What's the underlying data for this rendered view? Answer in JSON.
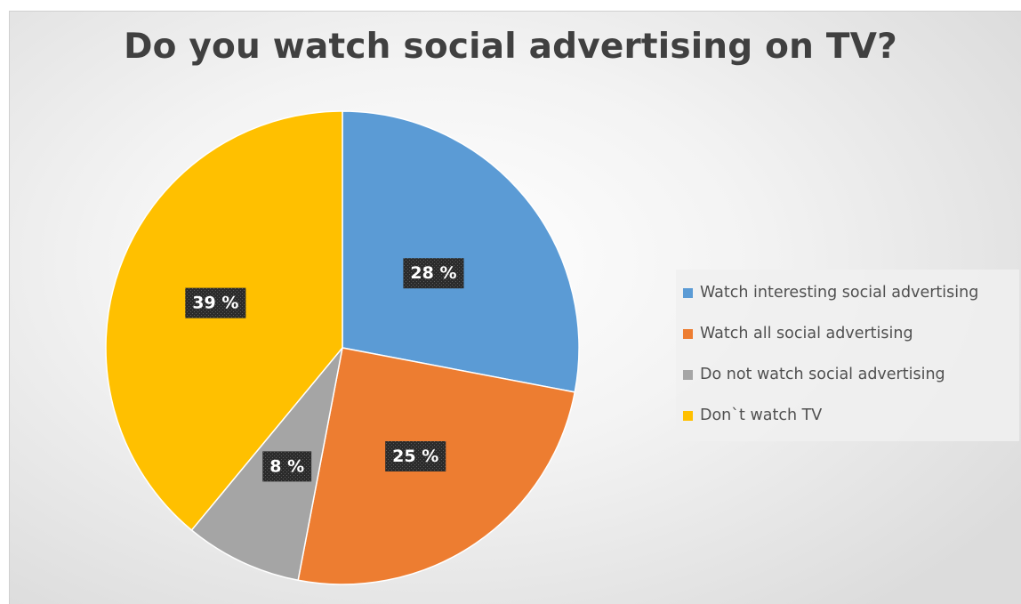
{
  "chart_data": {
    "type": "pie",
    "title": "Do you watch social advertising on TV?",
    "slices": [
      {
        "label": "Watch interesting social advertising",
        "value": 28,
        "data_label": "28 %",
        "color": "#5b9bd5"
      },
      {
        "label": "Watch all social advertising",
        "value": 25,
        "data_label": "25 %",
        "color": "#ed7d31"
      },
      {
        "label": "Do not watch social advertising",
        "value": 8,
        "data_label": "8 %",
        "color": "#a5a5a5"
      },
      {
        "label": "Don`t watch TV",
        "value": 39,
        "data_label": "39 %",
        "color": "#ffc000"
      }
    ],
    "start_angle": "12 o'clock",
    "direction": "clockwise",
    "legend_position": "right",
    "data_label_style": "white bold text on dark patterned box"
  }
}
